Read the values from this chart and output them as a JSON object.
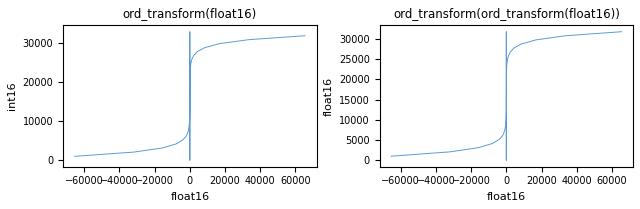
{
  "title1": "ord_transform(float16)",
  "title2": "ord_transform(ord_transform(float16))",
  "xlabel": "float16",
  "ylabel1": "int16",
  "ylabel2": "float16",
  "line_color": "#5B9BD5",
  "fig_width": 6.4,
  "fig_height": 2.09,
  "dpi": 100
}
